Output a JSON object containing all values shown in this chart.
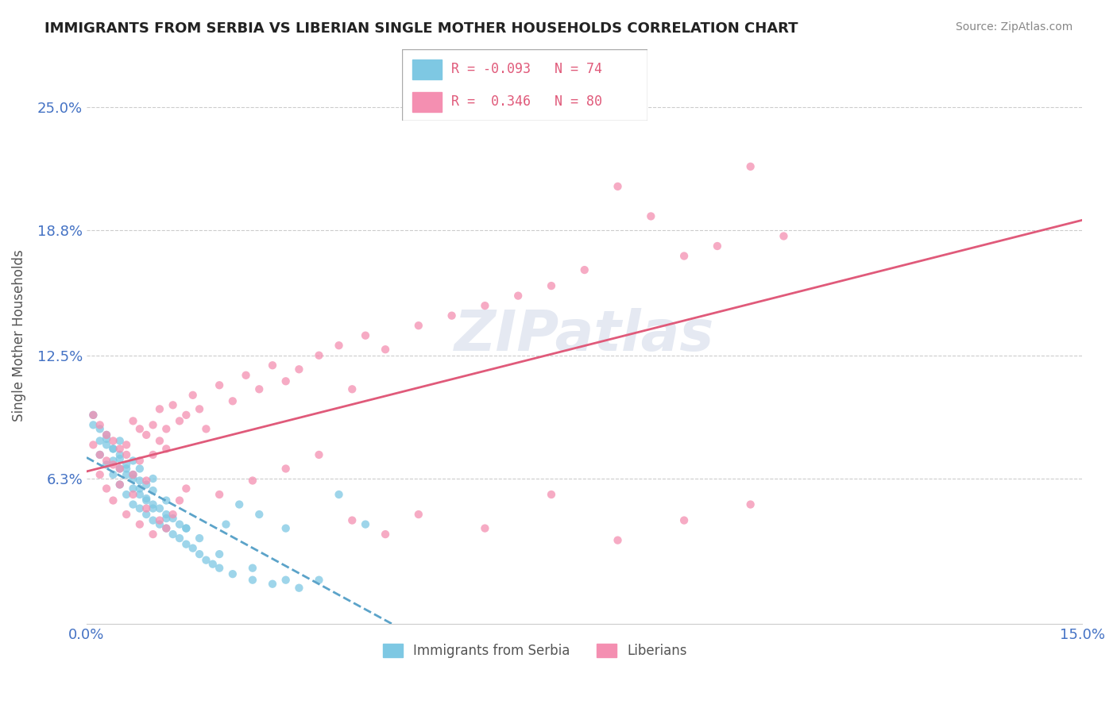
{
  "title": "IMMIGRANTS FROM SERBIA VS LIBERIAN SINGLE MOTHER HOUSEHOLDS CORRELATION CHART",
  "source": "Source: ZipAtlas.com",
  "ylabel": "Single Mother Households",
  "xlabel_ticks": [
    "0.0%",
    "15.0%"
  ],
  "ytick_labels": [
    "6.3%",
    "12.5%",
    "18.8%",
    "25.0%"
  ],
  "ytick_values": [
    0.063,
    0.125,
    0.188,
    0.25
  ],
  "xlim": [
    0.0,
    0.15
  ],
  "ylim": [
    -0.01,
    0.28
  ],
  "legend": {
    "serbia_r": "-0.093",
    "serbia_n": "74",
    "liberia_r": "0.346",
    "liberia_n": "80"
  },
  "serbia_color": "#7ec8e3",
  "liberia_color": "#f48fb1",
  "serbia_line_color": "#5ba3c9",
  "liberia_line_color": "#e05a7a",
  "watermark": "ZIPatlas",
  "serbia_scatter_x": [
    0.001,
    0.002,
    0.002,
    0.003,
    0.003,
    0.003,
    0.004,
    0.004,
    0.004,
    0.005,
    0.005,
    0.005,
    0.005,
    0.006,
    0.006,
    0.006,
    0.007,
    0.007,
    0.007,
    0.007,
    0.008,
    0.008,
    0.008,
    0.008,
    0.009,
    0.009,
    0.009,
    0.01,
    0.01,
    0.01,
    0.01,
    0.011,
    0.011,
    0.012,
    0.012,
    0.012,
    0.013,
    0.013,
    0.014,
    0.014,
    0.015,
    0.015,
    0.016,
    0.017,
    0.018,
    0.019,
    0.02,
    0.021,
    0.022,
    0.023,
    0.025,
    0.026,
    0.028,
    0.03,
    0.032,
    0.035,
    0.038,
    0.042,
    0.001,
    0.002,
    0.003,
    0.004,
    0.005,
    0.006,
    0.007,
    0.008,
    0.009,
    0.01,
    0.012,
    0.015,
    0.017,
    0.02,
    0.025,
    0.03
  ],
  "serbia_scatter_y": [
    0.09,
    0.075,
    0.082,
    0.07,
    0.08,
    0.085,
    0.065,
    0.072,
    0.078,
    0.06,
    0.068,
    0.075,
    0.082,
    0.055,
    0.065,
    0.07,
    0.05,
    0.058,
    0.065,
    0.072,
    0.048,
    0.055,
    0.062,
    0.068,
    0.045,
    0.052,
    0.06,
    0.042,
    0.05,
    0.057,
    0.063,
    0.04,
    0.048,
    0.038,
    0.045,
    0.052,
    0.035,
    0.043,
    0.033,
    0.04,
    0.03,
    0.038,
    0.028,
    0.025,
    0.022,
    0.02,
    0.018,
    0.04,
    0.015,
    0.05,
    0.012,
    0.045,
    0.01,
    0.038,
    0.008,
    0.012,
    0.055,
    0.04,
    0.095,
    0.088,
    0.083,
    0.078,
    0.073,
    0.068,
    0.063,
    0.058,
    0.053,
    0.048,
    0.043,
    0.038,
    0.033,
    0.025,
    0.018,
    0.012
  ],
  "liberia_scatter_x": [
    0.001,
    0.001,
    0.002,
    0.002,
    0.003,
    0.003,
    0.004,
    0.004,
    0.005,
    0.005,
    0.006,
    0.006,
    0.007,
    0.007,
    0.008,
    0.008,
    0.009,
    0.009,
    0.01,
    0.01,
    0.011,
    0.011,
    0.012,
    0.012,
    0.013,
    0.014,
    0.015,
    0.016,
    0.017,
    0.018,
    0.02,
    0.022,
    0.024,
    0.026,
    0.028,
    0.03,
    0.032,
    0.035,
    0.038,
    0.04,
    0.042,
    0.045,
    0.05,
    0.055,
    0.06,
    0.065,
    0.07,
    0.075,
    0.08,
    0.085,
    0.09,
    0.095,
    0.1,
    0.105,
    0.002,
    0.003,
    0.004,
    0.005,
    0.006,
    0.007,
    0.008,
    0.009,
    0.01,
    0.011,
    0.012,
    0.013,
    0.014,
    0.015,
    0.02,
    0.025,
    0.03,
    0.035,
    0.04,
    0.045,
    0.05,
    0.06,
    0.07,
    0.08,
    0.09,
    0.1
  ],
  "liberia_scatter_y": [
    0.095,
    0.08,
    0.09,
    0.075,
    0.085,
    0.072,
    0.082,
    0.07,
    0.078,
    0.068,
    0.075,
    0.08,
    0.092,
    0.065,
    0.088,
    0.072,
    0.085,
    0.062,
    0.09,
    0.075,
    0.098,
    0.082,
    0.088,
    0.078,
    0.1,
    0.092,
    0.095,
    0.105,
    0.098,
    0.088,
    0.11,
    0.102,
    0.115,
    0.108,
    0.12,
    0.112,
    0.118,
    0.125,
    0.13,
    0.108,
    0.135,
    0.128,
    0.14,
    0.145,
    0.15,
    0.155,
    0.16,
    0.168,
    0.21,
    0.195,
    0.175,
    0.18,
    0.22,
    0.185,
    0.065,
    0.058,
    0.052,
    0.06,
    0.045,
    0.055,
    0.04,
    0.048,
    0.035,
    0.042,
    0.038,
    0.045,
    0.052,
    0.058,
    0.055,
    0.062,
    0.068,
    0.075,
    0.042,
    0.035,
    0.045,
    0.038,
    0.055,
    0.032,
    0.042,
    0.05
  ]
}
